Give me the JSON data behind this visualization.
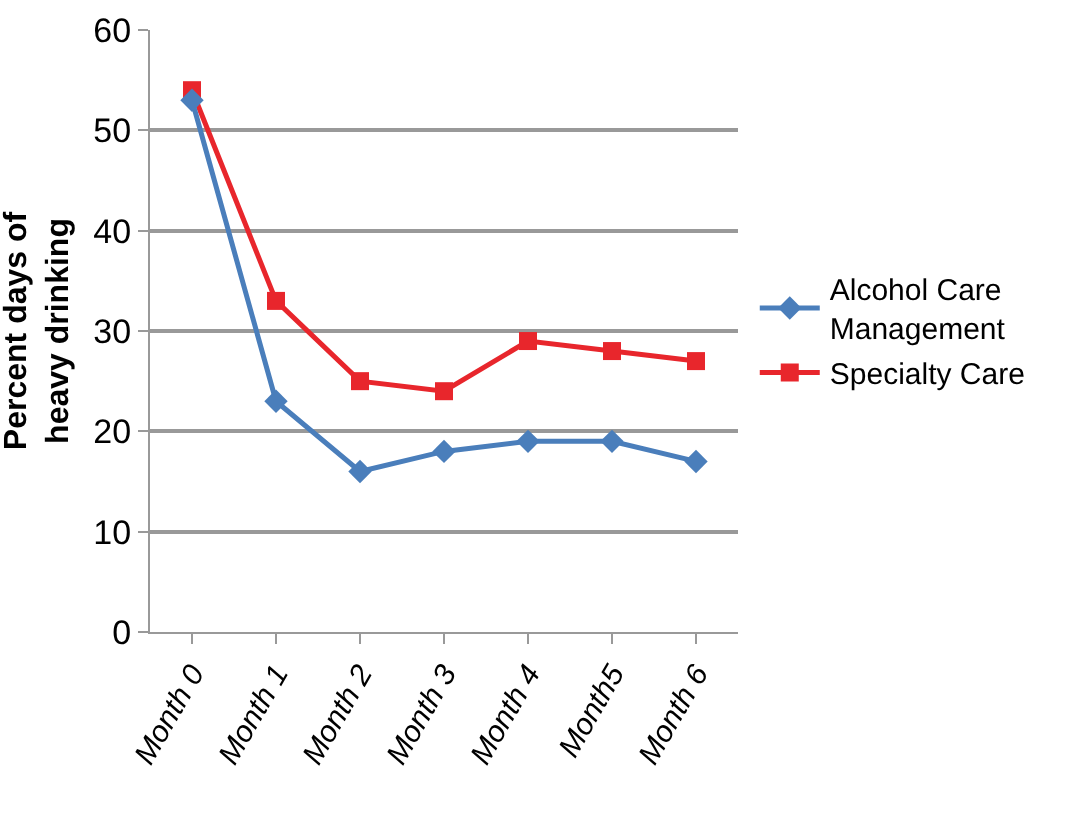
{
  "chart_data": {
    "type": "line",
    "ylabel": "Percent days of heavy drinking",
    "categories": [
      "Month 0",
      "Month 1",
      "Month 2",
      "Month 3",
      "Month 4",
      "Month5",
      "Month 6"
    ],
    "series": [
      {
        "name": "Alcohol Care Management",
        "color": "#4a7ebb",
        "marker": "diamond",
        "values": [
          53,
          23,
          16,
          18,
          19,
          19,
          17
        ]
      },
      {
        "name": "Specialty Care",
        "color": "#e8262c",
        "marker": "square",
        "values": [
          54,
          33,
          25,
          24,
          29,
          28,
          27
        ]
      }
    ],
    "ylim": [
      0,
      60
    ],
    "yticks": [
      0,
      10,
      20,
      30,
      40,
      50,
      60
    ],
    "grid": "y",
    "legend": "right",
    "line_style": "solid"
  }
}
